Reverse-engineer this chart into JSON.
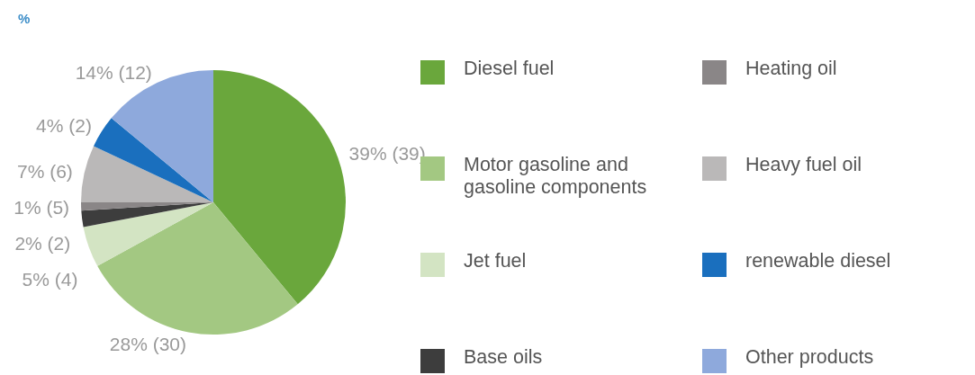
{
  "chart_data": {
    "type": "pie",
    "title": "%",
    "categories": [
      "Diesel fuel",
      "Motor gasoline and gasoline components",
      "Jet fuel",
      "Base oils",
      "Heating oil",
      "Heavy fuel oil",
      "renewable diesel",
      "Other products"
    ],
    "values": [
      39,
      28,
      5,
      2,
      1,
      7,
      4,
      14
    ],
    "colors": [
      "#6aa73c",
      "#a3c882",
      "#d3e4c3",
      "#3d3d3d",
      "#8a8687",
      "#bab8b8",
      "#1a6fbe",
      "#8ea9dc"
    ],
    "value_labels": [
      "39% (39)",
      "28% (30)",
      "5% (4)",
      "2% (2)",
      "1% (5)",
      "7% (6)",
      "4% (2)",
      "14% (12)"
    ],
    "legend": "right"
  }
}
